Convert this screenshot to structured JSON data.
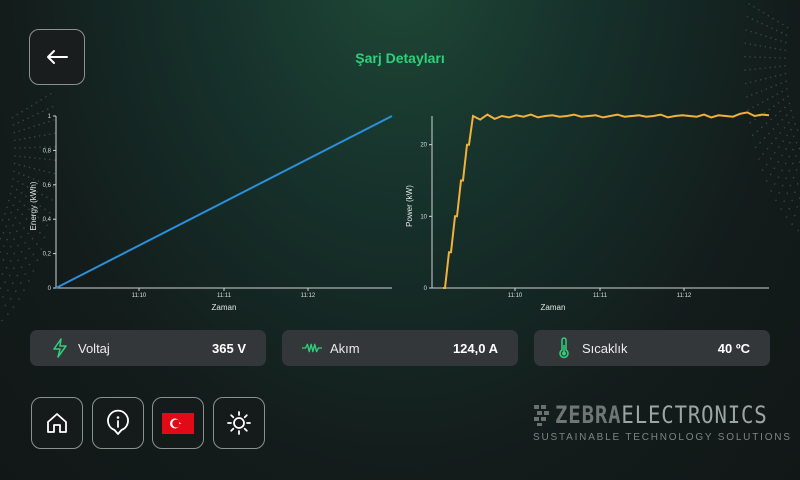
{
  "header": {
    "title": "Şarj Detayları",
    "back_icon": "arrow-left-icon"
  },
  "charts": [
    {
      "id": "energy",
      "ylabel": "Energy (kWh)",
      "xlabel": "Zaman",
      "color": "#2b8fd9"
    },
    {
      "id": "power",
      "ylabel": "Power (kW)",
      "xlabel": "Zaman",
      "color": "#f2b03c"
    }
  ],
  "chart_data": [
    {
      "type": "line",
      "title": "",
      "xlabel": "Zaman",
      "ylabel": "Energy (kWh)",
      "xticks": [
        "11:10",
        "11:11",
        "11:12"
      ],
      "yticks": [
        "0",
        "0,2",
        "0,4",
        "0,6",
        "0,8",
        "1"
      ],
      "ylim": [
        0,
        1
      ],
      "series": [
        {
          "x": [
            0,
            1
          ],
          "y": [
            0,
            1
          ]
        }
      ],
      "grid": false
    },
    {
      "type": "line",
      "title": "",
      "xlabel": "Zaman",
      "ylabel": "Power (kW)",
      "xticks": [
        "11:10",
        "11:11",
        "11:12"
      ],
      "yticks": [
        "0",
        "10",
        "20"
      ],
      "ylim": [
        0,
        24
      ],
      "series": [
        {
          "y": [
            0,
            0,
            5,
            5,
            10,
            10,
            15,
            15,
            20,
            20,
            24,
            23.5,
            24.2,
            23.6,
            24,
            23.8,
            24.1,
            23.9,
            24.2,
            23.8,
            24,
            24.1,
            23.9,
            24,
            24.2,
            23.9,
            24,
            24.1,
            23.8,
            24,
            24.2,
            23.9,
            24,
            24.1,
            23.9,
            24,
            24.2,
            23.8,
            24,
            24.1,
            24,
            23.9,
            24.2,
            23.8,
            24.1,
            24,
            23.9,
            24.3,
            24.5,
            24,
            24.2,
            24.1
          ]
        }
      ],
      "grid": false
    }
  ],
  "stats": [
    {
      "label": "Voltaj",
      "value": "365 V",
      "icon": "lightning-icon"
    },
    {
      "label": "Akım",
      "value": "124,0 A",
      "icon": "current-wave-icon"
    },
    {
      "label": "Sıcaklık",
      "value": "40 ºC",
      "icon": "thermometer-icon"
    }
  ],
  "nav": [
    {
      "name": "home",
      "icon": "home-icon"
    },
    {
      "name": "info",
      "icon": "info-icon"
    },
    {
      "name": "language",
      "icon": "turkey-flag-icon"
    },
    {
      "name": "brightness",
      "icon": "sun-icon"
    }
  ],
  "brand": {
    "name_bold": "ZEBRA",
    "name_rest": "ELECTRONICS",
    "tagline": "SUSTAINABLE TECHNOLOGY SOLUTIONS"
  }
}
